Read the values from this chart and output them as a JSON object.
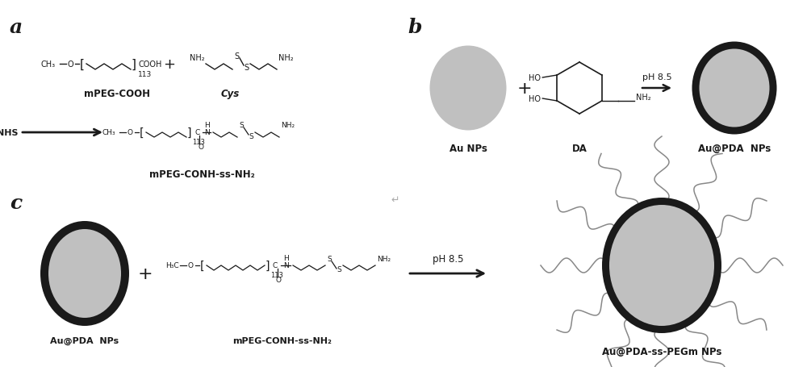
{
  "panel_a_label": "a",
  "panel_b_label": "b",
  "panel_c_label": "c",
  "mpeg_cooh_label": "mPEG-COOH",
  "cys_label": "Cys",
  "eds_nhs_label": "EDS/NHS",
  "mpeg_conh_ss_nh2_label": "mPEG-CONH-ss-NH₂",
  "au_nps_label_b": "Au NPs",
  "da_label": "DA",
  "au_pda_nps_label": "Au@PDA  NPs",
  "ph85_label": "pH 8.5",
  "au_pda_nps_label_c": "Au@PDA  NPs",
  "mpeg_conh_ss_nh2_label_c": "mPEG-CONH-ss-NH₂",
  "ph85_label_c": "pH 8.5",
  "au_pda_pegm_label": "Au@PDA-ss-PEGm NPs",
  "num_113": "113",
  "bg_color": "#ffffff",
  "dark_color": "#1a1a1a",
  "gray_fill": "#c0c0c0",
  "chain_color": "#888888"
}
